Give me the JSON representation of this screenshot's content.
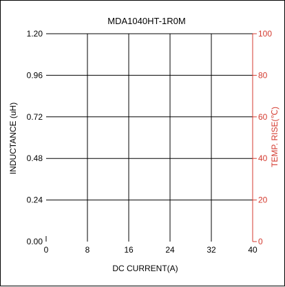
{
  "chart_data": {
    "type": "line",
    "title": "MDA1040HT-1R0M",
    "xlabel": "DC CURRENT(A)",
    "ylabel": "INDUCTANCE (uH)",
    "y2label": "TEMP. RISE(℃)",
    "xlim": [
      0,
      40
    ],
    "ylim": [
      0,
      1.2
    ],
    "y2lim": [
      0,
      100
    ],
    "xticks": [
      "0",
      "8",
      "16",
      "24",
      "32",
      "40"
    ],
    "yticks": [
      "0.00",
      "0.24",
      "0.48",
      "0.72",
      "0.96",
      "1.20"
    ],
    "y2ticks": [
      "0",
      "20",
      "40",
      "60",
      "80",
      "100"
    ],
    "grid": true,
    "series": [],
    "colors": {
      "primary_axis": "#000000",
      "secondary_axis": "#d43a2f",
      "grid": "#000000"
    }
  }
}
